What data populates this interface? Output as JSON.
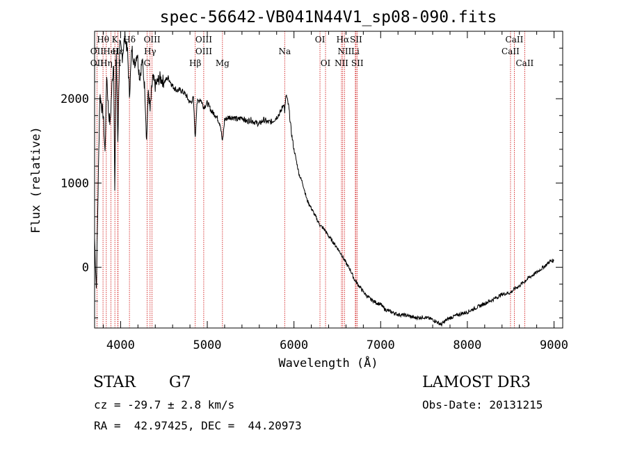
{
  "chart_data": {
    "type": "line",
    "title": "spec-56642-VB041N44V1_sp08-090.fits",
    "xlabel": "Wavelength (Å)",
    "ylabel": "Flux (relative)",
    "xlim": [
      3700,
      9100
    ],
    "ylim": [
      -720,
      2800
    ],
    "xticks": [
      4000,
      5000,
      6000,
      7000,
      8000,
      9000
    ],
    "yticks": [
      0,
      1000,
      2000
    ],
    "spectrum": [
      [
        3700,
        350
      ],
      [
        3720,
        -250
      ],
      [
        3760,
        2050
      ],
      [
        3800,
        1800
      ],
      [
        3820,
        1350
      ],
      [
        3840,
        2300
      ],
      [
        3860,
        1850
      ],
      [
        3880,
        1700
      ],
      [
        3900,
        2150
      ],
      [
        3920,
        2450
      ],
      [
        3933,
        880
      ],
      [
        3950,
        2550
      ],
      [
        3968,
        1500
      ],
      [
        3990,
        2650
      ],
      [
        4020,
        2500
      ],
      [
        4050,
        2750
      ],
      [
        4080,
        2550
      ],
      [
        4102,
        2050
      ],
      [
        4130,
        2600
      ],
      [
        4160,
        2400
      ],
      [
        4190,
        2550
      ],
      [
        4220,
        2250
      ],
      [
        4250,
        2450
      ],
      [
        4280,
        2100
      ],
      [
        4300,
        1500
      ],
      [
        4320,
        2100
      ],
      [
        4340,
        1850
      ],
      [
        4370,
        2250
      ],
      [
        4400,
        2150
      ],
      [
        4450,
        2250
      ],
      [
        4500,
        2200
      ],
      [
        4550,
        2250
      ],
      [
        4600,
        2150
      ],
      [
        4650,
        2100
      ],
      [
        4700,
        2100
      ],
      [
        4750,
        2050
      ],
      [
        4800,
        1950
      ],
      [
        4840,
        2000
      ],
      [
        4861,
        1520
      ],
      [
        4880,
        1950
      ],
      [
        4920,
        2000
      ],
      [
        4960,
        1900
      ],
      [
        5000,
        1950
      ],
      [
        5050,
        1850
      ],
      [
        5100,
        1800
      ],
      [
        5150,
        1700
      ],
      [
        5175,
        1480
      ],
      [
        5200,
        1750
      ],
      [
        5250,
        1780
      ],
      [
        5300,
        1780
      ],
      [
        5350,
        1750
      ],
      [
        5400,
        1780
      ],
      [
        5450,
        1730
      ],
      [
        5500,
        1750
      ],
      [
        5550,
        1720
      ],
      [
        5600,
        1700
      ],
      [
        5650,
        1750
      ],
      [
        5700,
        1720
      ],
      [
        5750,
        1730
      ],
      [
        5800,
        1780
      ],
      [
        5850,
        1850
      ],
      [
        5880,
        1950
      ],
      [
        5893,
        1850
      ],
      [
        5910,
        2050
      ],
      [
        5940,
        1900
      ],
      [
        5970,
        1600
      ],
      [
        6000,
        1400
      ],
      [
        6030,
        1250
      ],
      [
        6060,
        1100
      ],
      [
        6100,
        1000
      ],
      [
        6150,
        800
      ],
      [
        6200,
        700
      ],
      [
        6250,
        600
      ],
      [
        6300,
        500
      ],
      [
        6350,
        450
      ],
      [
        6400,
        370
      ],
      [
        6450,
        300
      ],
      [
        6500,
        230
      ],
      [
        6550,
        150
      ],
      [
        6600,
        50
      ],
      [
        6650,
        -30
      ],
      [
        6700,
        -150
      ],
      [
        6750,
        -220
      ],
      [
        6800,
        -290
      ],
      [
        6850,
        -350
      ],
      [
        6900,
        -390
      ],
      [
        6950,
        -420
      ],
      [
        7000,
        -440
      ],
      [
        7050,
        -500
      ],
      [
        7100,
        -520
      ],
      [
        7150,
        -540
      ],
      [
        7200,
        -560
      ],
      [
        7300,
        -570
      ],
      [
        7400,
        -600
      ],
      [
        7500,
        -590
      ],
      [
        7600,
        -620
      ],
      [
        7650,
        -650
      ],
      [
        7700,
        -680
      ],
      [
        7750,
        -630
      ],
      [
        7800,
        -600
      ],
      [
        7900,
        -560
      ],
      [
        8000,
        -530
      ],
      [
        8100,
        -480
      ],
      [
        8200,
        -430
      ],
      [
        8300,
        -380
      ],
      [
        8400,
        -320
      ],
      [
        8500,
        -300
      ],
      [
        8550,
        -250
      ],
      [
        8600,
        -220
      ],
      [
        8700,
        -130
      ],
      [
        8800,
        -60
      ],
      [
        8900,
        20
      ],
      [
        8950,
        70
      ],
      [
        9000,
        80
      ]
    ],
    "emission_lines": [
      {
        "name": "Hθ",
        "wave": 3797,
        "row": 1
      },
      {
        "name": "OII",
        "wave": 3727,
        "row": 2
      },
      {
        "name": "OII",
        "wave": 3727,
        "row": 3
      },
      {
        "name": "Hη",
        "wave": 3835,
        "row": 3
      },
      {
        "name": "K",
        "wave": 3934,
        "row": 1
      },
      {
        "name": "HeI",
        "wave": 3889,
        "row": 2
      },
      {
        "name": "H",
        "wave": 3968,
        "row": 3
      },
      {
        "name": "Hε",
        "wave": 3970,
        "row": 2
      },
      {
        "name": "Hδ",
        "wave": 4102,
        "row": 1
      },
      {
        "name": "OIII",
        "wave": 4363,
        "row": 1
      },
      {
        "name": "Hγ",
        "wave": 4340,
        "row": 2
      },
      {
        "name": "G",
        "wave": 4305,
        "row": 3
      },
      {
        "name": "OIII",
        "wave": 4959,
        "row": 1
      },
      {
        "name": "OIII",
        "wave": 4959,
        "row": 2
      },
      {
        "name": "Hβ",
        "wave": 4861,
        "row": 3
      },
      {
        "name": "Mg",
        "wave": 5175,
        "row": 3
      },
      {
        "name": "Na",
        "wave": 5893,
        "row": 2
      },
      {
        "name": "OI",
        "wave": 6300,
        "row": 1
      },
      {
        "name": "OI",
        "wave": 6364,
        "row": 3
      },
      {
        "name": "Hα",
        "wave": 6563,
        "row": 1
      },
      {
        "name": "SII",
        "wave": 6716,
        "row": 1
      },
      {
        "name": "NII",
        "wave": 6583,
        "row": 2
      },
      {
        "name": "Li",
        "wave": 6708,
        "row": 2
      },
      {
        "name": "NII",
        "wave": 6548,
        "row": 3
      },
      {
        "name": "SII",
        "wave": 6731,
        "row": 3
      },
      {
        "name": "CaII",
        "wave": 8542,
        "row": 1
      },
      {
        "name": "CaII",
        "wave": 8498,
        "row": 2
      },
      {
        "name": "CaII",
        "wave": 8662,
        "row": 3
      }
    ],
    "line_marker_color": "#cc0000",
    "spectrum_color": "#000000"
  },
  "info": {
    "object_class": "STAR",
    "subclass": "G7",
    "survey": "LAMOST DR3",
    "redshift": "cz = -29.7 ± 2.8 km/s",
    "obs_date": "Obs-Date: 20131215",
    "coords": "RA =  42.97425, DEC =  44.20973"
  }
}
